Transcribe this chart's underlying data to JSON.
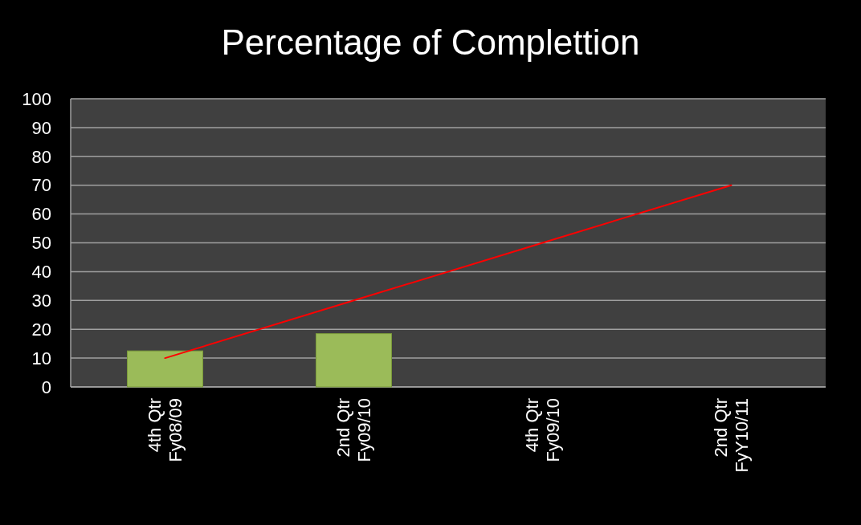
{
  "chart_data": {
    "type": "bar",
    "title": "Percentage of Complettion",
    "categories": [
      "4th Qtr\nFy08/09",
      "2nd Qtr\nFy09/10",
      "4th Qtr\nFy09/10",
      "2nd Qtr\nFyY10/11"
    ],
    "series": [
      {
        "color": "#9bbb59",
        "values": [
          12.5,
          18.5,
          null,
          null
        ]
      },
      {
        "type": "line",
        "color": "#ff0000",
        "values": [
          10,
          30,
          50,
          70
        ]
      }
    ],
    "ylim": [
      0,
      100
    ],
    "yticks": [
      0,
      10,
      20,
      30,
      40,
      50,
      60,
      70,
      80,
      90,
      100
    ],
    "grid": "y"
  }
}
